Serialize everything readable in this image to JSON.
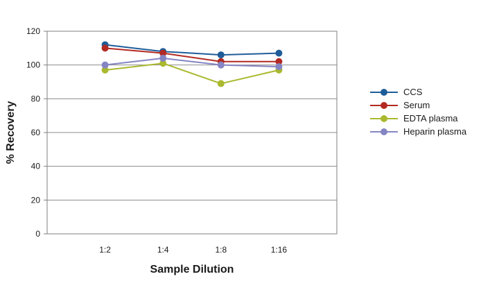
{
  "chart_data": {
    "type": "line",
    "title": "",
    "xlabel": "Sample Dilution",
    "ylabel": "% Recovery",
    "categories": [
      "1:2",
      "1:4",
      "1:8",
      "1:16"
    ],
    "ylim": [
      0,
      120
    ],
    "yticks": [
      0,
      20,
      40,
      60,
      80,
      100,
      120
    ],
    "grid": true,
    "legend_position": "right",
    "series": [
      {
        "name": "CCS",
        "color": "#1f5d99",
        "values": [
          112,
          108,
          106,
          107
        ]
      },
      {
        "name": "Serum",
        "color": "#b32a22",
        "values": [
          110,
          107,
          102,
          102
        ]
      },
      {
        "name": "EDTA plasma",
        "color": "#aab92e",
        "values": [
          97,
          101,
          89,
          97
        ]
      },
      {
        "name": "Heparin plasma",
        "color": "#8585c4",
        "values": [
          100,
          104,
          100,
          99
        ]
      }
    ]
  }
}
